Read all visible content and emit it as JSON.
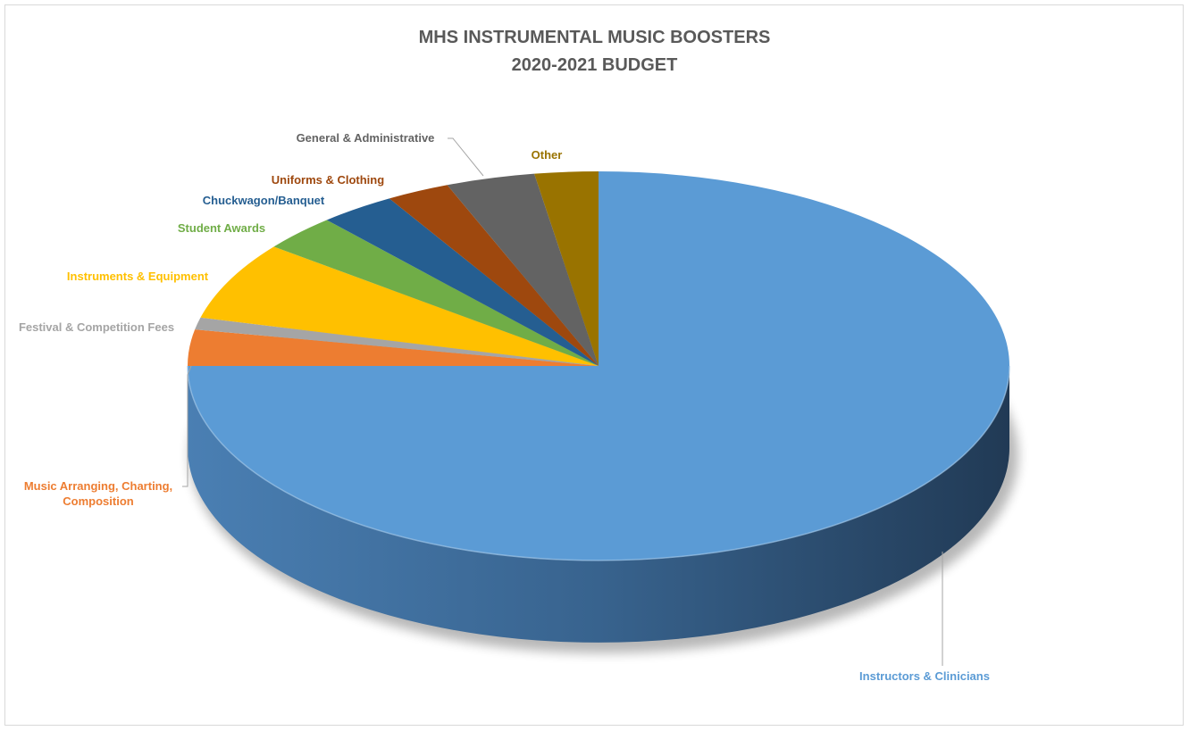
{
  "chart_data": {
    "type": "pie",
    "style": "3d",
    "title_lines": [
      "MHS INSTRUMENTAL MUSIC BOOSTERS",
      "2020-2021 BUDGET"
    ],
    "legend": "none",
    "slices": [
      {
        "label": "Instructors & Clinicians",
        "value": 75.0,
        "color": "#5b9bd5"
      },
      {
        "label_lines": [
          "Music Arranging, Charting,",
          "Composition"
        ],
        "value": 3.0,
        "color": "#ed7d31"
      },
      {
        "label": "Festival & Competition Fees",
        "value": 1.0,
        "color": "#a5a5a5"
      },
      {
        "label": "Instruments & Equipment",
        "value": 6.5,
        "color": "#ffc000"
      },
      {
        "label": "Student Awards",
        "value": 3.0,
        "color": "#70ad47"
      },
      {
        "label": "Chuckwagon/Banquet",
        "value": 3.0,
        "color": "#255e91"
      },
      {
        "label": "Uniforms & Clothing",
        "value": 2.5,
        "color": "#9e480e"
      },
      {
        "label": "General & Administrative",
        "value": 3.5,
        "color": "#636363"
      },
      {
        "label": "Other",
        "value": 2.5,
        "color": "#997300"
      }
    ]
  }
}
